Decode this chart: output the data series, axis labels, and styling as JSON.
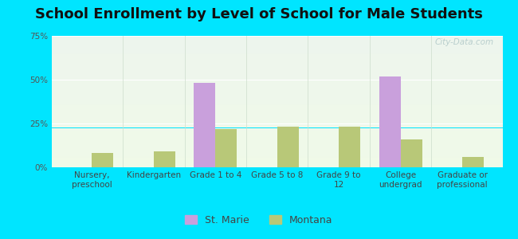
{
  "title": "School Enrollment by Level of School for Male Students",
  "categories": [
    "Nursery,\npreschool",
    "Kindergarten",
    "Grade 1 to 4",
    "Grade 5 to 8",
    "Grade 9 to\n12",
    "College\nundergrad",
    "Graduate or\nprofessional"
  ],
  "st_marie": [
    0,
    0,
    48,
    0,
    0,
    52,
    0
  ],
  "montana": [
    8,
    9,
    22,
    23,
    23,
    16,
    6
  ],
  "st_marie_color": "#c9a0dc",
  "montana_color": "#b8c878",
  "background_outer": "#00e5ff",
  "ylim": [
    0,
    75
  ],
  "yticks": [
    0,
    25,
    50,
    75
  ],
  "ytick_labels": [
    "0%",
    "25%",
    "50%",
    "75%"
  ],
  "legend_label_1": "St. Marie",
  "legend_label_2": "Montana",
  "bar_width": 0.35,
  "title_fontsize": 13,
  "tick_fontsize": 7.5,
  "legend_fontsize": 9,
  "watermark": "City-Data.com"
}
